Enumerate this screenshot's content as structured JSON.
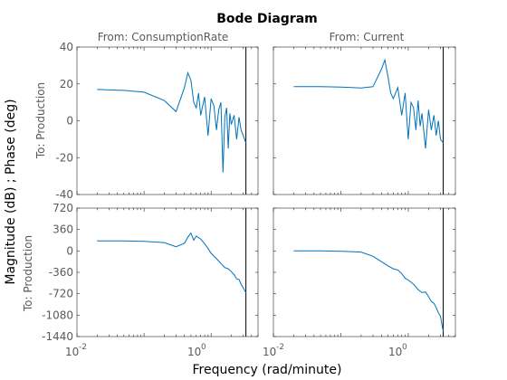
{
  "chart_data": {
    "type": "line",
    "title": "Bode Diagram",
    "xlabel": "Frequency  (rad/minute)",
    "ylabel": "Magnitude (dB) ; Phase (deg)",
    "xscale": "log",
    "xlim": [
      0.01,
      5
    ],
    "grid": false,
    "line_color": "#0072BD",
    "nyquist_line_x": 3.3,
    "column_titles": [
      "From: ConsumptionRate",
      "From: Current"
    ],
    "row_label": "To: Production",
    "magnitude": {
      "ylim": [
        -40,
        40
      ],
      "ticks": [
        40,
        20,
        0,
        -20,
        -40
      ],
      "tick_labels": [
        "40",
        "20",
        "0",
        "-20",
        "-40"
      ]
    },
    "phase": {
      "ylim": [
        -1440,
        720
      ],
      "ticks": [
        720,
        360,
        0,
        -360,
        -720,
        -1080,
        -1440
      ],
      "tick_labels": [
        "720",
        "360",
        "0",
        "-360",
        "-720",
        "-1080",
        "-1440"
      ]
    },
    "x_tick_labels": [
      "10",
      "-2",
      "10",
      "0"
    ],
    "series": [
      {
        "panel": "magnitude-consumption",
        "x": [
          0.02,
          0.05,
          0.1,
          0.2,
          0.3,
          0.4,
          0.45,
          0.5,
          0.55,
          0.6,
          0.65,
          0.7,
          0.8,
          0.9,
          1.0,
          1.1,
          1.2,
          1.3,
          1.4,
          1.5,
          1.6,
          1.7,
          1.8,
          1.9,
          2.0,
          2.2,
          2.4,
          2.6,
          2.8,
          3.0,
          3.3
        ],
        "y": [
          17,
          16.5,
          15.5,
          11,
          5,
          18,
          26,
          22,
          10,
          7,
          15,
          3,
          13,
          -8,
          12,
          8,
          -5,
          6,
          10,
          -28,
          2,
          7,
          -15,
          4,
          -2,
          3,
          -10,
          2,
          -5,
          -8,
          -12
        ]
      },
      {
        "panel": "magnitude-current",
        "x": [
          0.02,
          0.05,
          0.1,
          0.2,
          0.3,
          0.4,
          0.45,
          0.5,
          0.55,
          0.6,
          0.7,
          0.8,
          0.9,
          1.0,
          1.1,
          1.2,
          1.3,
          1.4,
          1.5,
          1.6,
          1.8,
          2.0,
          2.2,
          2.4,
          2.6,
          2.8,
          3.0,
          3.3
        ],
        "y": [
          18.5,
          18.5,
          18.3,
          17.8,
          18.5,
          28,
          33,
          24,
          15,
          12,
          18,
          3,
          15,
          -10,
          10,
          7,
          -5,
          11,
          -3,
          4,
          -15,
          6,
          -5,
          3,
          -8,
          0,
          -10,
          -12
        ]
      },
      {
        "panel": "phase-consumption",
        "x": [
          0.02,
          0.05,
          0.1,
          0.2,
          0.3,
          0.4,
          0.45,
          0.5,
          0.55,
          0.6,
          0.7,
          0.8,
          0.9,
          1.0,
          1.2,
          1.4,
          1.6,
          1.8,
          2.0,
          2.2,
          2.4,
          2.6,
          2.8,
          3.0,
          3.3
        ],
        "y": [
          170,
          168,
          162,
          140,
          70,
          130,
          230,
          300,
          180,
          250,
          200,
          120,
          40,
          -40,
          -130,
          -210,
          -280,
          -300,
          -350,
          -400,
          -470,
          -480,
          -560,
          -620,
          -700
        ]
      },
      {
        "panel": "phase-current",
        "x": [
          0.02,
          0.05,
          0.1,
          0.2,
          0.3,
          0.4,
          0.5,
          0.6,
          0.7,
          0.8,
          0.9,
          1.0,
          1.2,
          1.4,
          1.6,
          1.8,
          2.0,
          2.2,
          2.4,
          2.6,
          2.8,
          3.0,
          3.2,
          3.3
        ],
        "y": [
          0,
          0,
          -5,
          -20,
          -90,
          -180,
          -250,
          -300,
          -320,
          -380,
          -460,
          -490,
          -560,
          -650,
          -700,
          -690,
          -770,
          -850,
          -880,
          -950,
          -1040,
          -1100,
          -1280,
          -1350
        ]
      }
    ]
  }
}
